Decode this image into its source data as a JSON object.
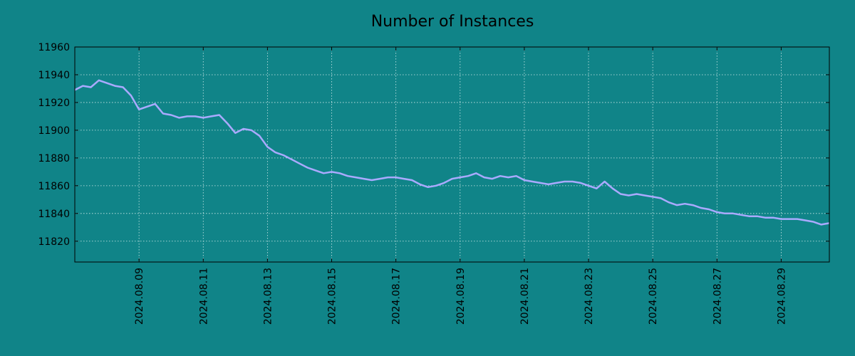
{
  "colors": {
    "background": "#108488",
    "line": "#aaaaff",
    "grid": "#cfe9e9",
    "axis": "#000000"
  },
  "chart_data": {
    "type": "line",
    "title": "Number of Instances",
    "xlabel": "",
    "ylabel": "",
    "grid": true,
    "x_tick_labels": [
      "2024.08.09",
      "2024.08.11",
      "2024.08.13",
      "2024.08.15",
      "2024.08.17",
      "2024.08.19",
      "2024.08.21",
      "2024.08.23",
      "2024.08.25",
      "2024.08.27",
      "2024.08.29"
    ],
    "y_tick_labels": [
      "11820",
      "11840",
      "11860",
      "11880",
      "11900",
      "11920",
      "11940",
      "11960"
    ],
    "xlim": [
      "2024.08.07 00:00",
      "2024.08.30 12:00"
    ],
    "ylim": [
      11805,
      11960
    ],
    "series": [
      {
        "x": [
          "2024.08.07 00:00",
          "2024.08.07 06:00",
          "2024.08.07 12:00",
          "2024.08.07 18:00",
          "2024.08.08 00:00",
          "2024.08.08 06:00",
          "2024.08.08 12:00",
          "2024.08.08 18:00",
          "2024.08.09 00:00",
          "2024.08.09 06:00",
          "2024.08.09 12:00",
          "2024.08.09 18:00",
          "2024.08.10 00:00",
          "2024.08.10 06:00",
          "2024.08.10 12:00",
          "2024.08.10 18:00",
          "2024.08.11 00:00",
          "2024.08.11 06:00",
          "2024.08.11 12:00",
          "2024.08.11 18:00",
          "2024.08.12 00:00",
          "2024.08.12 06:00",
          "2024.08.12 12:00",
          "2024.08.12 18:00",
          "2024.08.13 00:00",
          "2024.08.13 06:00",
          "2024.08.13 12:00",
          "2024.08.13 18:00",
          "2024.08.14 00:00",
          "2024.08.14 06:00",
          "2024.08.14 12:00",
          "2024.08.14 18:00",
          "2024.08.15 00:00",
          "2024.08.15 06:00",
          "2024.08.15 12:00",
          "2024.08.15 18:00",
          "2024.08.16 00:00",
          "2024.08.16 06:00",
          "2024.08.16 12:00",
          "2024.08.16 18:00",
          "2024.08.17 00:00",
          "2024.08.17 06:00",
          "2024.08.17 12:00",
          "2024.08.17 18:00",
          "2024.08.18 00:00",
          "2024.08.18 06:00",
          "2024.08.18 12:00",
          "2024.08.18 18:00",
          "2024.08.19 00:00",
          "2024.08.19 06:00",
          "2024.08.19 12:00",
          "2024.08.19 18:00",
          "2024.08.20 00:00",
          "2024.08.20 06:00",
          "2024.08.20 12:00",
          "2024.08.20 18:00",
          "2024.08.21 00:00",
          "2024.08.21 06:00",
          "2024.08.21 12:00",
          "2024.08.21 18:00",
          "2024.08.22 00:00",
          "2024.08.22 06:00",
          "2024.08.22 12:00",
          "2024.08.22 18:00",
          "2024.08.23 00:00",
          "2024.08.23 06:00",
          "2024.08.23 12:00",
          "2024.08.23 18:00",
          "2024.08.24 00:00",
          "2024.08.24 06:00",
          "2024.08.24 12:00",
          "2024.08.24 18:00",
          "2024.08.25 00:00",
          "2024.08.25 06:00",
          "2024.08.25 12:00",
          "2024.08.25 18:00",
          "2024.08.26 00:00",
          "2024.08.26 06:00",
          "2024.08.26 12:00",
          "2024.08.26 18:00",
          "2024.08.27 00:00",
          "2024.08.27 06:00",
          "2024.08.27 12:00",
          "2024.08.27 18:00",
          "2024.08.28 00:00",
          "2024.08.28 06:00",
          "2024.08.28 12:00",
          "2024.08.28 18:00",
          "2024.08.29 00:00",
          "2024.08.29 06:00",
          "2024.08.29 12:00",
          "2024.08.29 18:00",
          "2024.08.30 00:00",
          "2024.08.30 06:00",
          "2024.08.30 12:00"
        ],
        "values": [
          11929,
          11932,
          11931,
          11936,
          11934,
          11932,
          11931,
          11925,
          11915,
          11917,
          11919,
          11912,
          11911,
          11909,
          11910,
          11910,
          11909,
          11910,
          11911,
          11905,
          11898,
          11901,
          11900,
          11896,
          11888,
          11884,
          11882,
          11879,
          11876,
          11873,
          11871,
          11869,
          11870,
          11869,
          11867,
          11866,
          11865,
          11864,
          11865,
          11866,
          11866,
          11865,
          11864,
          11861,
          11859,
          11860,
          11862,
          11865,
          11866,
          11867,
          11869,
          11866,
          11865,
          11867,
          11866,
          11867,
          11864,
          11863,
          11862,
          11861,
          11862,
          11863,
          11863,
          11862,
          11860,
          11858,
          11863,
          11858,
          11854,
          11853,
          11854,
          11853,
          11852,
          11851,
          11848,
          11846,
          11847,
          11846,
          11844,
          11843,
          11841,
          11840,
          11840,
          11839,
          11838,
          11838,
          11837,
          11837,
          11836,
          11836,
          11836,
          11835,
          11834,
          11832,
          11833
        ]
      }
    ]
  }
}
